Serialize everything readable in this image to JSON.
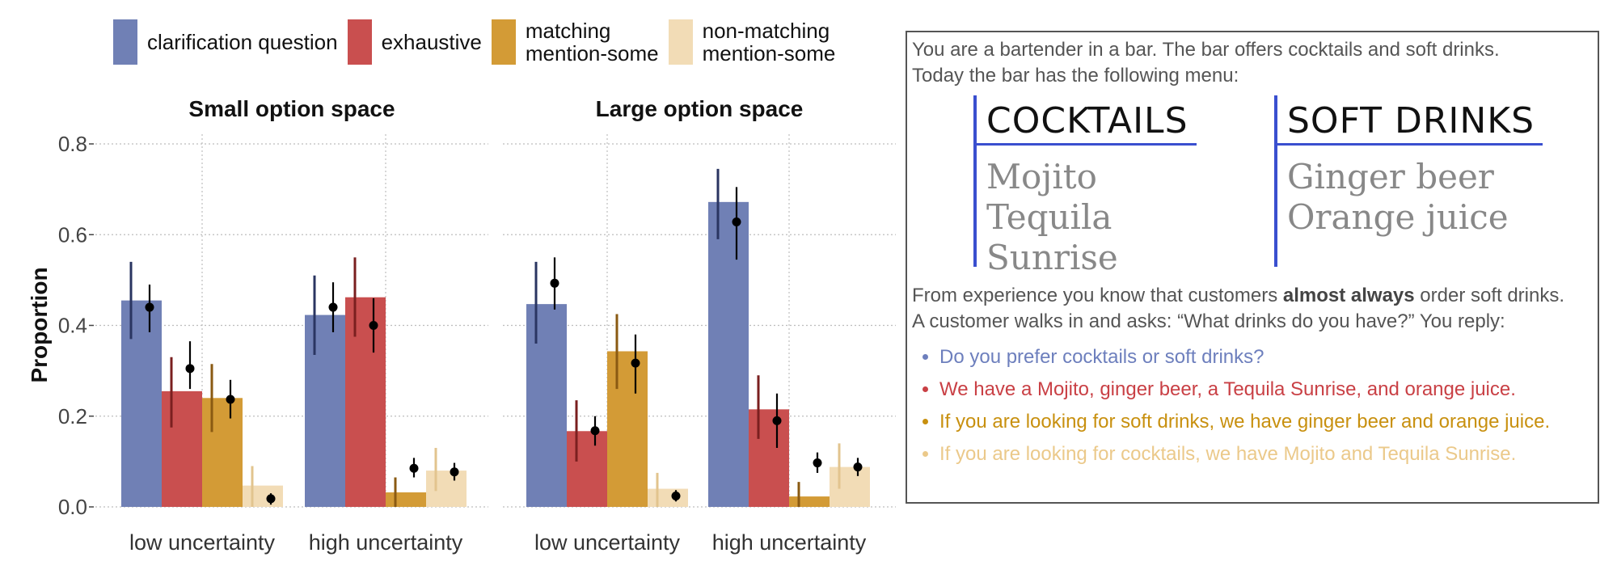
{
  "legend": [
    {
      "label": "clarification question",
      "color": "#7080b5"
    },
    {
      "label": "exhaustive",
      "color": "#c94f4f"
    },
    {
      "label": "matching\nmention-some",
      "color": "#d39b36"
    },
    {
      "label": "non-matching\nmention-some",
      "color": "#f2dcb6"
    }
  ],
  "chart_data": {
    "type": "bar",
    "ylabel": "Proportion",
    "ylim": [
      0,
      0.8
    ],
    "yticks": [
      "0.0",
      "0.2",
      "0.4",
      "0.6",
      "0.8"
    ],
    "series_names": [
      "clarification question",
      "exhaustive",
      "matching mention-some",
      "non-matching mention-some"
    ],
    "colors": [
      "#7080b5",
      "#c94f4f",
      "#d39b36",
      "#f2dcb6"
    ],
    "errbar_colors": [
      "#2a3561",
      "#7a1f1f",
      "#8a5a12",
      "#e2c48e"
    ],
    "facets": [
      {
        "title": "Small option space",
        "categories": [
          "low uncertainty",
          "high uncertainty"
        ],
        "groups": [
          {
            "bars": [
              0.455,
              0.255,
              0.24,
              0.047
            ],
            "bar_err": [
              [
                0.37,
                0.54
              ],
              [
                0.175,
                0.33
              ],
              [
                0.165,
                0.315
              ],
              [
                0.0,
                0.09
              ]
            ],
            "points": [
              0.44,
              0.305,
              0.237,
              0.018
            ],
            "point_err": [
              [
                0.385,
                0.49
              ],
              [
                0.26,
                0.365
              ],
              [
                0.195,
                0.28
              ],
              [
                0.005,
                0.03
              ]
            ]
          },
          {
            "bars": [
              0.423,
              0.462,
              0.032,
              0.08
            ],
            "bar_err": [
              [
                0.335,
                0.51
              ],
              [
                0.375,
                0.55
              ],
              [
                0.0,
                0.065
              ],
              [
                0.035,
                0.13
              ]
            ],
            "points": [
              0.44,
              0.4,
              0.085,
              0.077
            ],
            "point_err": [
              [
                0.385,
                0.495
              ],
              [
                0.34,
                0.46
              ],
              [
                0.065,
                0.108
              ],
              [
                0.058,
                0.097
              ]
            ]
          }
        ]
      },
      {
        "title": "Large option space",
        "categories": [
          "low uncertainty",
          "high uncertainty"
        ],
        "groups": [
          {
            "bars": [
              0.447,
              0.167,
              0.343,
              0.04
            ],
            "bar_err": [
              [
                0.36,
                0.54
              ],
              [
                0.1,
                0.235
              ],
              [
                0.26,
                0.425
              ],
              [
                0.0,
                0.075
              ]
            ],
            "points": [
              0.493,
              0.168,
              0.317,
              0.024
            ],
            "point_err": [
              [
                0.435,
                0.55
              ],
              [
                0.135,
                0.2
              ],
              [
                0.25,
                0.38
              ],
              [
                0.012,
                0.037
              ]
            ]
          },
          {
            "bars": [
              0.672,
              0.215,
              0.023,
              0.088
            ],
            "bar_err": [
              [
                0.59,
                0.745
              ],
              [
                0.15,
                0.29
              ],
              [
                0.0,
                0.055
              ],
              [
                0.04,
                0.14
              ]
            ],
            "points": [
              0.628,
              0.19,
              0.097,
              0.088
            ],
            "point_err": [
              [
                0.545,
                0.705
              ],
              [
                0.13,
                0.25
              ],
              [
                0.075,
                0.12
              ],
              [
                0.068,
                0.108
              ]
            ]
          }
        ]
      }
    ]
  },
  "panel": {
    "intro_line1": "You are a bartender in a bar. The bar offers cocktails and soft drinks.",
    "intro_line2": "Today the bar has the following menu:",
    "menu": [
      {
        "heading": "COCKTAILS",
        "items": [
          "Mojito",
          "Tequila Sunrise"
        ]
      },
      {
        "heading": "SOFT DRINKS",
        "items": [
          "Ginger beer",
          "Orange juice"
        ]
      }
    ],
    "exp_before": "From experience you know that customers ",
    "exp_bold": "almost always",
    "exp_after": " order soft drinks.",
    "question": "A customer walks in and asks: “What drinks do you have?” You reply:",
    "replies": [
      {
        "text": "Do you prefer cocktails or soft drinks?",
        "color": "#6d7fbd"
      },
      {
        "text": "We have a Mojito, ginger beer, a Tequila Sunrise, and orange juice.",
        "color": "#c94045"
      },
      {
        "text": "If you are looking for soft drinks, we have ginger beer and orange juice.",
        "color": "#c8900f"
      },
      {
        "text": "If you are looking for cocktails, we have Mojito and Tequila Sunrise.",
        "color": "#ebc98a"
      }
    ]
  }
}
